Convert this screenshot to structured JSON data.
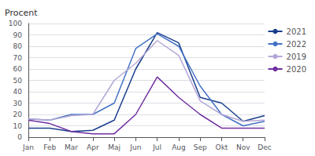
{
  "chart_data": {
    "type": "line",
    "ylabel": "Procent",
    "categories": [
      "Jan",
      "Feb",
      "Mar",
      "Apr",
      "Maj",
      "Jun",
      "Jul",
      "Aug",
      "Sep",
      "Okt",
      "Nov",
      "Dec"
    ],
    "series": [
      {
        "name": "2021",
        "color": "#1a3e8c",
        "values": [
          8,
          8,
          5,
          6,
          15,
          60,
          92,
          83,
          35,
          30,
          14,
          19
        ]
      },
      {
        "name": "2022",
        "color": "#4472c4",
        "values": [
          16,
          15,
          20,
          20,
          30,
          78,
          91,
          80,
          45,
          20,
          10,
          14
        ]
      },
      {
        "name": "2019",
        "color": "#b4a7d6",
        "values": [
          16,
          15,
          19,
          20,
          50,
          65,
          85,
          72,
          32,
          20,
          14,
          15
        ]
      },
      {
        "name": "2020",
        "color": "#7030a0",
        "values": [
          15,
          12,
          5,
          3,
          3,
          20,
          53,
          35,
          20,
          8,
          8,
          8
        ]
      }
    ],
    "ylim": [
      0,
      100
    ],
    "yticks": [
      0,
      10,
      20,
      30,
      40,
      50,
      60,
      70,
      80,
      90,
      100
    ],
    "grid": true,
    "legend": "right"
  }
}
